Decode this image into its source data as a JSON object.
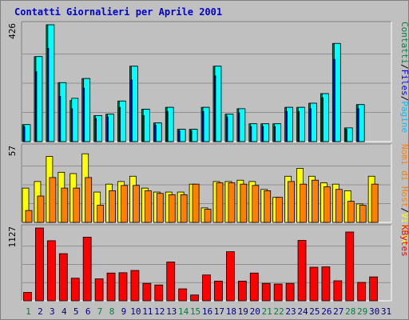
{
  "chart_data": {
    "type": "bar",
    "title": "Contatti Giornalieri per Aprile 2001",
    "categories": [
      "1",
      "2",
      "3",
      "4",
      "5",
      "6",
      "7",
      "8",
      "9",
      "10",
      "11",
      "12",
      "13",
      "14",
      "15",
      "16",
      "17",
      "18",
      "19",
      "20",
      "21",
      "22",
      "23",
      "24",
      "25",
      "26",
      "27",
      "28",
      "29",
      "30",
      "31"
    ],
    "weekend_days": [
      1,
      7,
      8,
      14,
      15,
      21,
      22,
      28,
      29
    ],
    "colors": {
      "background": "#c0c0c0",
      "pages": "#00ffff",
      "files": "#0000ff",
      "hits": "#008040",
      "visits": "#ffff00",
      "sites": "#ff8000",
      "kbytes": "#ff0000",
      "title": "#0000cc",
      "weekend_tick": "#008040",
      "weekday_tick": "#000080"
    },
    "panels": [
      {
        "ytick": "426",
        "ylim": [
          0,
          426
        ],
        "legend": [
          {
            "text": "Contatti",
            "color": "#008040"
          },
          {
            "text": "/",
            "color": "#000000"
          },
          {
            "text": "Files",
            "color": "#0000ff"
          },
          {
            "text": "/",
            "color": "#000000"
          },
          {
            "text": "Pagine",
            "color": "#00c0ff"
          }
        ],
        "series": [
          {
            "name": "Contatti",
            "values": [
              62,
              310,
              426,
              215,
              150,
              230,
              95,
              100,
              148,
              275,
              118,
              68,
              125,
              45,
              45,
              125,
              275,
              100,
              120,
              65,
              65,
              65,
              125,
              125,
              140,
              175,
              358,
              50,
              135,
              0,
              0
            ]
          },
          {
            "name": "Files",
            "values": [
              55,
              255,
              340,
              165,
              120,
              195,
              85,
              90,
              125,
              225,
              95,
              60,
              110,
              40,
              40,
              110,
              240,
              90,
              105,
              55,
              55,
              55,
              110,
              110,
              120,
              160,
              300,
              45,
              120,
              0,
              0
            ]
          },
          {
            "name": "Pagine",
            "values": [
              62,
              310,
              426,
              215,
              158,
              230,
              95,
              100,
              148,
              275,
              118,
              68,
              125,
              45,
              45,
              125,
              275,
              100,
              120,
              65,
              65,
              65,
              125,
              125,
              140,
              175,
              358,
              50,
              135,
              0,
              0
            ]
          }
        ]
      },
      {
        "ytick": "57",
        "ylim": [
          0,
          57
        ],
        "legend": [
          {
            "text": "Nomi di Host",
            "color": "#ff8000"
          },
          {
            "text": "/",
            "color": "#000000"
          },
          {
            "text": "Visite",
            "color": "#ffff00"
          }
        ],
        "series": [
          {
            "name": "Visite",
            "values": [
              26,
              31,
              50,
              38,
              37,
              52,
              23,
              29,
              31,
              35,
              26,
              23,
              23,
              23,
              29,
              11,
              31,
              31,
              32,
              31,
              25,
              19,
              35,
              41,
              35,
              30,
              29,
              24,
              14,
              35,
              0
            ]
          },
          {
            "name": "Nomi di Host",
            "values": [
              9,
              20,
              34,
              26,
              26,
              34,
              13,
              24,
              28,
              28,
              24,
              22,
              21,
              21,
              29,
              10,
              30,
              30,
              29,
              28,
              24,
              19,
              31,
              29,
              32,
              27,
              25,
              16,
              13,
              29,
              0
            ]
          }
        ]
      },
      {
        "ytick": "1127",
        "ylim": [
          0,
          1127
        ],
        "legend": [
          {
            "text": "KBytes",
            "color": "#ff0000"
          }
        ],
        "series": [
          {
            "name": "KBytes",
            "values": [
              130,
              1127,
              930,
              730,
              350,
              985,
              340,
              430,
              435,
              470,
              270,
              245,
              600,
              185,
              90,
              400,
              305,
              760,
              305,
              430,
              270,
              260,
              270,
              935,
              520,
              525,
              310,
              1065,
              285,
              370,
              0
            ]
          }
        ]
      }
    ]
  }
}
